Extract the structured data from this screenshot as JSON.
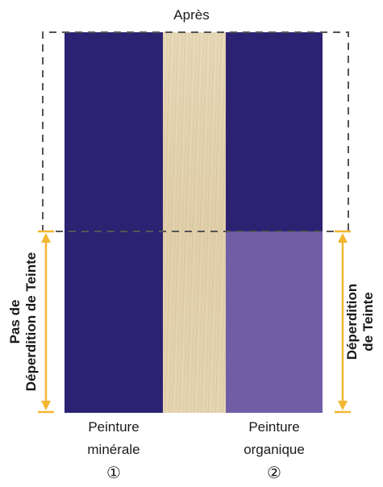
{
  "title": "Après",
  "samples": [
    {
      "caption_line1": "Peinture",
      "caption_line2": "minérale",
      "number": "①",
      "color_top": "#2c2272",
      "color_bottom": "#2c2272"
    },
    {
      "caption_line1": "Peinture",
      "caption_line2": "organique",
      "number": "②",
      "color_top": "#2c2272",
      "color_bottom": "#6f5ea6"
    }
  ],
  "left_label": {
    "line1": "Pas de",
    "line2": "Déperdition de Teinte"
  },
  "right_label": {
    "line1": "Déperdition",
    "line2": "de Teinte"
  },
  "colors": {
    "paint_dark": "#2c2272",
    "paint_faded": "#6f5ea6",
    "wood": "#e6d6b2",
    "arrow": "#f2b630",
    "dashed_frame": "#555555"
  }
}
